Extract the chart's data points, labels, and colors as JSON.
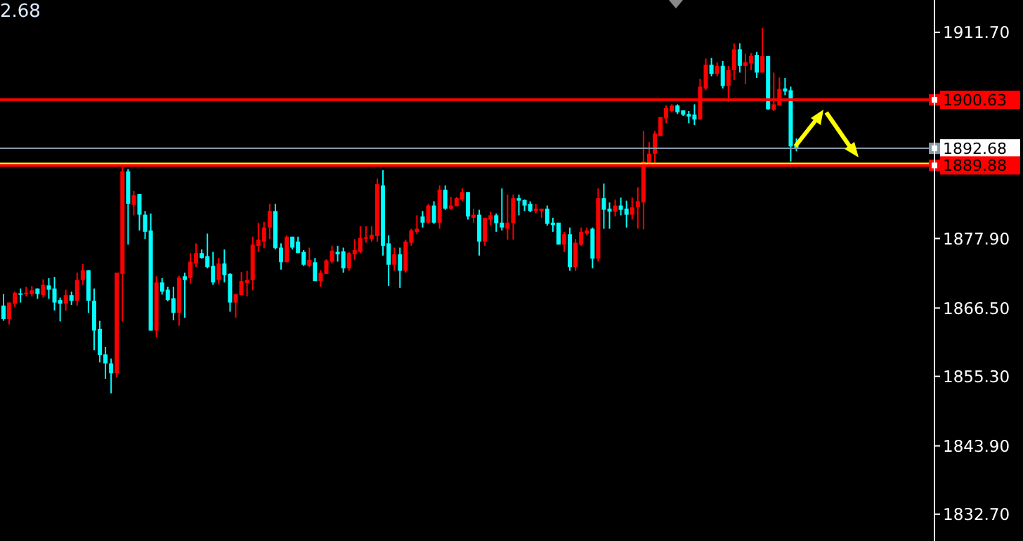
{
  "chart_data": {
    "type": "candlestick",
    "categories": [
      null,
      null,
      null,
      null,
      null,
      null,
      null,
      null,
      null,
      null,
      null,
      null,
      null,
      null,
      null,
      null,
      null,
      null,
      null,
      null,
      null,
      null,
      null,
      null,
      null,
      null,
      null,
      null,
      null,
      null,
      null,
      null,
      null,
      null,
      null,
      null,
      null,
      null,
      null,
      null,
      null,
      null,
      null,
      null,
      null,
      null,
      null,
      null,
      null,
      null,
      null,
      null,
      null,
      null,
      null,
      null,
      null,
      null,
      null,
      null,
      null,
      null,
      null,
      null,
      null,
      null,
      null,
      null,
      null,
      null,
      null,
      null,
      null,
      null,
      null,
      null,
      null,
      null,
      null,
      null,
      null,
      null,
      null,
      null,
      null,
      null,
      null,
      null,
      null,
      null,
      null,
      null,
      null,
      null,
      null,
      null,
      null,
      null,
      null,
      null,
      null,
      null,
      null,
      null,
      null,
      null,
      null,
      null,
      null,
      null,
      null,
      null,
      null,
      null,
      null,
      null,
      null,
      null,
      null,
      null,
      null,
      null,
      null,
      null,
      null,
      null,
      null,
      null,
      null,
      null,
      null,
      null,
      null,
      null,
      null,
      null,
      null,
      null,
      null,
      null,
      null,
      null,
      null,
      null,
      null,
      null,
      null,
      null,
      null,
      null,
      null,
      null,
      null,
      null,
      null,
      null,
      null,
      null,
      null,
      null,
      null,
      null,
      null,
      null,
      null
    ],
    "ohlc": [
      [
        1866.9,
        1868.8,
        1864.4,
        1864.7
      ],
      [
        1864.7,
        1867.4,
        1863.8,
        1867.4
      ],
      [
        1867.2,
        1869.2,
        1866.7,
        1869.0
      ],
      [
        1868.9,
        1869.7,
        1867.4,
        1868.7
      ],
      [
        1868.8,
        1870.0,
        1868.4,
        1869.0
      ],
      [
        1868.8,
        1870.1,
        1868.4,
        1869.4
      ],
      [
        1869.7,
        1869.7,
        1868.0,
        1868.8
      ],
      [
        1868.6,
        1871.2,
        1868.2,
        1870.3
      ],
      [
        1870.2,
        1871.4,
        1868.0,
        1869.5
      ],
      [
        1869.7,
        1871.6,
        1866.1,
        1867.4
      ],
      [
        1867.8,
        1868.2,
        1864.3,
        1867.2
      ],
      [
        1867.2,
        1869.5,
        1866.1,
        1868.6
      ],
      [
        1868.6,
        1869.2,
        1867.0,
        1867.7
      ],
      [
        1867.7,
        1872.3,
        1866.9,
        1871.1
      ],
      [
        1871.1,
        1873.7,
        1870.3,
        1872.7
      ],
      [
        1872.7,
        1872.7,
        1865.7,
        1867.7
      ],
      [
        1867.7,
        1869.7,
        1859.6,
        1862.8
      ],
      [
        1863.1,
        1864.4,
        1857.6,
        1858.8
      ],
      [
        1858.9,
        1860.1,
        1854.9,
        1857.4
      ],
      [
        1857.4,
        1858.2,
        1852.5,
        1855.8
      ],
      [
        1855.8,
        1872.3,
        1855.1,
        1872.3
      ],
      [
        1872.1,
        1889.6,
        1864.3,
        1888.9
      ],
      [
        1888.9,
        1889.3,
        1876.9,
        1883.6
      ],
      [
        1883.4,
        1885.7,
        1881.7,
        1885.0
      ],
      [
        1885.2,
        1885.2,
        1879.2,
        1881.8
      ],
      [
        1881.8,
        1882.4,
        1877.8,
        1879.0
      ],
      [
        1879.2,
        1882.0,
        1862.8,
        1862.8
      ],
      [
        1862.8,
        1871.7,
        1861.7,
        1870.7
      ],
      [
        1870.7,
        1871.4,
        1868.7,
        1869.2
      ],
      [
        1869.5,
        1870.0,
        1867.6,
        1867.8
      ],
      [
        1868.1,
        1870.0,
        1864.5,
        1865.7
      ],
      [
        1865.7,
        1871.8,
        1863.6,
        1871.5
      ],
      [
        1871.7,
        1872.3,
        1864.9,
        1871.1
      ],
      [
        1871.4,
        1875.5,
        1870.5,
        1874.1
      ],
      [
        1873.8,
        1877.1,
        1873.2,
        1875.5
      ],
      [
        1875.5,
        1876.1,
        1874.6,
        1874.7
      ],
      [
        1875.0,
        1878.7,
        1873.0,
        1873.2
      ],
      [
        1873.4,
        1875.7,
        1870.3,
        1870.7
      ],
      [
        1871.1,
        1874.7,
        1870.4,
        1873.8
      ],
      [
        1873.8,
        1876.1,
        1870.7,
        1871.9
      ],
      [
        1872.1,
        1872.2,
        1865.9,
        1867.4
      ],
      [
        1867.4,
        1868.8,
        1864.9,
        1868.8
      ],
      [
        1868.6,
        1872.4,
        1868.6,
        1870.9
      ],
      [
        1870.6,
        1872.6,
        1868.4,
        1871.1
      ],
      [
        1871.1,
        1878.2,
        1869.4,
        1876.9
      ],
      [
        1876.7,
        1880.5,
        1875.7,
        1877.7
      ],
      [
        1877.4,
        1880.6,
        1876.3,
        1879.7
      ],
      [
        1879.7,
        1883.6,
        1877.8,
        1882.4
      ],
      [
        1882.4,
        1883.6,
        1876.1,
        1876.3
      ],
      [
        1876.4,
        1877.1,
        1872.8,
        1874.0
      ],
      [
        1874.0,
        1878.4,
        1874.0,
        1878.2
      ],
      [
        1878.2,
        1878.2,
        1876.1,
        1876.4
      ],
      [
        1877.4,
        1878.2,
        1875.5,
        1875.5
      ],
      [
        1875.7,
        1876.0,
        1873.4,
        1873.6
      ],
      [
        1873.4,
        1876.4,
        1873.2,
        1874.4
      ],
      [
        1874.0,
        1874.7,
        1870.9,
        1870.9
      ],
      [
        1870.9,
        1872.7,
        1870.0,
        1872.3
      ],
      [
        1872.1,
        1874.5,
        1872.1,
        1874.3
      ],
      [
        1874.1,
        1876.7,
        1873.8,
        1875.9
      ],
      [
        1875.7,
        1876.7,
        1874.1,
        1875.3
      ],
      [
        1875.8,
        1876.4,
        1872.3,
        1873.0
      ],
      [
        1873.0,
        1875.7,
        1872.6,
        1875.5
      ],
      [
        1875.3,
        1877.8,
        1874.4,
        1876.0
      ],
      [
        1875.7,
        1879.9,
        1875.5,
        1878.0
      ],
      [
        1877.9,
        1879.9,
        1877.2,
        1878.1
      ],
      [
        1877.8,
        1879.9,
        1877.4,
        1878.5
      ],
      [
        1878.3,
        1887.7,
        1877.4,
        1886.8
      ],
      [
        1886.6,
        1889.1,
        1875.1,
        1876.7
      ],
      [
        1877.1,
        1878.4,
        1870.1,
        1873.6
      ],
      [
        1873.6,
        1876.4,
        1872.6,
        1875.3
      ],
      [
        1875.3,
        1876.4,
        1869.8,
        1872.6
      ],
      [
        1872.6,
        1877.7,
        1872.3,
        1877.4
      ],
      [
        1877.2,
        1879.5,
        1876.7,
        1879.2
      ],
      [
        1879.0,
        1881.7,
        1878.6,
        1879.5
      ],
      [
        1881.5,
        1882.4,
        1879.7,
        1880.5
      ],
      [
        1880.5,
        1883.6,
        1880.3,
        1883.3
      ],
      [
        1883.3,
        1884.0,
        1880.3,
        1880.5
      ],
      [
        1880.5,
        1886.6,
        1879.5,
        1885.9
      ],
      [
        1885.9,
        1886.6,
        1882.6,
        1882.8
      ],
      [
        1882.8,
        1884.7,
        1882.6,
        1883.3
      ],
      [
        1883.2,
        1884.7,
        1883.2,
        1884.5
      ],
      [
        1884.3,
        1886.1,
        1884.0,
        1885.5
      ],
      [
        1885.5,
        1885.5,
        1881.0,
        1881.5
      ],
      [
        1881.3,
        1882.8,
        1880.5,
        1881.8
      ],
      [
        1881.8,
        1882.6,
        1875.1,
        1877.4
      ],
      [
        1877.4,
        1881.3,
        1876.7,
        1881.3
      ],
      [
        1881.0,
        1882.3,
        1880.1,
        1881.7
      ],
      [
        1881.7,
        1882.0,
        1879.0,
        1880.4
      ],
      [
        1880.5,
        1886.1,
        1879.2,
        1879.7
      ],
      [
        1879.5,
        1885.1,
        1877.7,
        1880.5
      ],
      [
        1880.4,
        1885.1,
        1877.7,
        1884.5
      ],
      [
        1884.5,
        1885.1,
        1881.7,
        1884.1
      ],
      [
        1884.2,
        1884.3,
        1882.4,
        1883.3
      ],
      [
        1883.6,
        1884.0,
        1882.2,
        1882.4
      ],
      [
        1882.4,
        1883.6,
        1882.0,
        1882.8
      ],
      [
        1882.4,
        1882.8,
        1881.3,
        1882.8
      ],
      [
        1882.8,
        1883.3,
        1880.0,
        1880.3
      ],
      [
        1880.5,
        1881.3,
        1879.0,
        1880.1
      ],
      [
        1880.5,
        1880.5,
        1876.9,
        1876.9
      ],
      [
        1876.9,
        1879.0,
        1875.7,
        1878.6
      ],
      [
        1878.6,
        1879.7,
        1872.6,
        1873.2
      ],
      [
        1873.2,
        1877.8,
        1872.6,
        1877.2
      ],
      [
        1876.9,
        1879.7,
        1876.7,
        1879.0
      ],
      [
        1878.7,
        1879.7,
        1878.4,
        1879.2
      ],
      [
        1879.5,
        1879.7,
        1873.0,
        1874.6
      ],
      [
        1874.6,
        1886.1,
        1874.1,
        1884.5
      ],
      [
        1884.5,
        1886.9,
        1879.5,
        1882.6
      ],
      [
        1882.8,
        1883.8,
        1879.5,
        1882.3
      ],
      [
        1882.3,
        1884.3,
        1881.5,
        1883.3
      ],
      [
        1883.3,
        1884.6,
        1881.7,
        1882.6
      ],
      [
        1882.8,
        1884.1,
        1879.7,
        1881.8
      ],
      [
        1881.8,
        1884.6,
        1881.0,
        1883.0
      ],
      [
        1883.0,
        1886.3,
        1879.5,
        1884.0
      ],
      [
        1883.8,
        1895.5,
        1879.4,
        1890.5
      ],
      [
        1890.3,
        1893.7,
        1890.3,
        1891.8
      ],
      [
        1891.8,
        1895.5,
        1890.3,
        1895.1
      ],
      [
        1894.7,
        1897.8,
        1894.7,
        1897.8
      ],
      [
        1897.6,
        1899.7,
        1896.8,
        1899.3
      ],
      [
        1898.8,
        1899.9,
        1898.6,
        1899.7
      ],
      [
        1899.7,
        1899.9,
        1898.3,
        1898.6
      ],
      [
        1898.9,
        1898.9,
        1898.0,
        1898.2
      ],
      [
        1898.3,
        1898.8,
        1896.8,
        1897.9
      ],
      [
        1898.2,
        1899.9,
        1896.5,
        1897.4
      ],
      [
        1897.4,
        1904.1,
        1897.4,
        1902.8
      ],
      [
        1902.5,
        1907.4,
        1902.2,
        1906.4
      ],
      [
        1906.4,
        1907.5,
        1904.5,
        1904.9
      ],
      [
        1904.9,
        1906.8,
        1904.5,
        1906.2
      ],
      [
        1906.2,
        1907.0,
        1902.5,
        1902.9
      ],
      [
        1902.9,
        1906.2,
        1900.3,
        1905.5
      ],
      [
        1905.5,
        1909.9,
        1903.9,
        1908.9
      ],
      [
        1908.9,
        1909.9,
        1905.1,
        1906.2
      ],
      [
        1906.2,
        1908.2,
        1903.2,
        1906.8
      ],
      [
        1906.6,
        1908.3,
        1905.5,
        1907.8
      ],
      [
        1908.0,
        1908.5,
        1904.2,
        1905.1
      ],
      [
        1905.1,
        1912.4,
        1905.1,
        1907.8
      ],
      [
        1907.8,
        1907.8,
        1899.0,
        1899.1
      ],
      [
        1899.0,
        1905.1,
        1898.8,
        1899.9
      ],
      [
        1899.7,
        1904.3,
        1899.7,
        1902.4
      ],
      [
        1902.5,
        1904.2,
        1901.4,
        1902.0
      ],
      [
        1902.2,
        1902.8,
        1890.5,
        1893.0
      ],
      [
        1893.2,
        1894.3,
        1892.2,
        1892.68
      ],
      null,
      null,
      null,
      null,
      null,
      null,
      null,
      null,
      null,
      null,
      null,
      null,
      null,
      null,
      null,
      null,
      null,
      null,
      null,
      null,
      null,
      null,
      null,
      null
    ],
    "colors": [
      "#00ffff",
      "#ff0000",
      "#ff0000",
      "#00ffff",
      "#ff0000",
      "#ff0000",
      "#00ffff",
      "#ff0000",
      "#00ffff",
      "#00ffff",
      "#00ffff",
      "#ff0000",
      "#00ffff",
      "#ff0000",
      "#ff0000",
      "#00ffff",
      "#00ffff",
      "#00ffff",
      "#00ffff",
      "#00ffff",
      "#ff0000",
      "#ff0000",
      "#00ffff",
      "#ff0000",
      "#00ffff",
      "#00ffff",
      "#00ffff",
      "#ff0000",
      "#00ffff",
      "#00ffff",
      "#00ffff",
      "#ff0000",
      "#00ffff",
      "#ff0000",
      "#ff0000",
      "#00ffff",
      "#00ffff",
      "#00ffff",
      "#ff0000",
      "#00ffff",
      "#00ffff",
      "#ff0000",
      "#ff0000",
      "#ff0000",
      "#ff0000",
      "#ff0000",
      "#ff0000",
      "#ff0000",
      "#00ffff",
      "#00ffff",
      "#ff0000",
      "#00ffff",
      "#00ffff",
      "#00ffff",
      "#ff0000",
      "#00ffff",
      "#ff0000",
      "#ff0000",
      "#ff0000",
      "#00ffff",
      "#00ffff",
      "#ff0000",
      "#ff0000",
      "#ff0000",
      "#ff0000",
      "#ff0000",
      "#ff0000",
      "#00ffff",
      "#00ffff",
      "#ff0000",
      "#00ffff",
      "#ff0000",
      "#ff0000",
      "#ff0000",
      "#00ffff",
      "#ff0000",
      "#00ffff",
      "#ff0000",
      "#00ffff",
      "#ff0000",
      "#ff0000",
      "#ff0000",
      "#00ffff",
      "#ff0000",
      "#00ffff",
      "#ff0000",
      "#ff0000",
      "#00ffff",
      "#00ffff",
      "#ff0000",
      "#ff0000",
      "#00ffff",
      "#00ffff",
      "#00ffff",
      "#ff0000",
      "#ff0000",
      "#00ffff",
      "#00ffff",
      "#00ffff",
      "#ff0000",
      "#00ffff",
      "#ff0000",
      "#ff0000",
      "#ff0000",
      "#00ffff",
      "#ff0000",
      "#00ffff",
      "#00ffff",
      "#ff0000",
      "#00ffff",
      "#00ffff",
      "#ff0000",
      "#ff0000",
      "#ff0000",
      "#ff0000",
      "#ff0000",
      "#ff0000",
      "#ff0000",
      "#ff0000",
      "#00ffff",
      "#00ffff",
      "#00ffff",
      "#00ffff",
      "#ff0000",
      "#ff0000",
      "#00ffff",
      "#ff0000",
      "#00ffff",
      "#ff0000",
      "#ff0000",
      "#00ffff",
      "#ff0000",
      "#ff0000",
      "#00ffff",
      "#ff0000",
      "#00ffff",
      "#ff0000",
      "#ff0000",
      "#00ffff",
      "#00ffff",
      "#00ffff",
      null,
      null,
      null,
      null,
      null,
      null,
      null,
      null,
      null,
      null,
      null,
      null,
      null,
      null,
      null,
      null,
      null,
      null,
      null,
      null,
      null,
      null,
      null,
      null
    ],
    "ylim": [
      1828.3,
      1917.0
    ],
    "yticks": [
      {
        "value": 1911.7,
        "label": "1911.70"
      },
      {
        "value": 1877.9,
        "label": "1877.90"
      },
      {
        "value": 1866.5,
        "label": "1866.50"
      },
      {
        "value": 1855.3,
        "label": "1855.30"
      },
      {
        "value": 1843.9,
        "label": "1843.90"
      },
      {
        "value": 1832.7,
        "label": "1832.70"
      }
    ],
    "tick_labels": "y",
    "ref_lines": [
      {
        "axis": "y",
        "value": 1890.1,
        "label": null,
        "color": "#ffff00"
      },
      {
        "axis": "y",
        "value": 1900.63,
        "label": "1900.63",
        "color": "#ff0000"
      },
      {
        "axis": "y",
        "value": 1892.68,
        "label": "1892.68",
        "color": "#8899aa"
      },
      {
        "axis": "y",
        "value": 1889.88,
        "label": "1889.88",
        "color": "#ff0000"
      }
    ],
    "annotations": [
      "2.68"
    ]
  }
}
